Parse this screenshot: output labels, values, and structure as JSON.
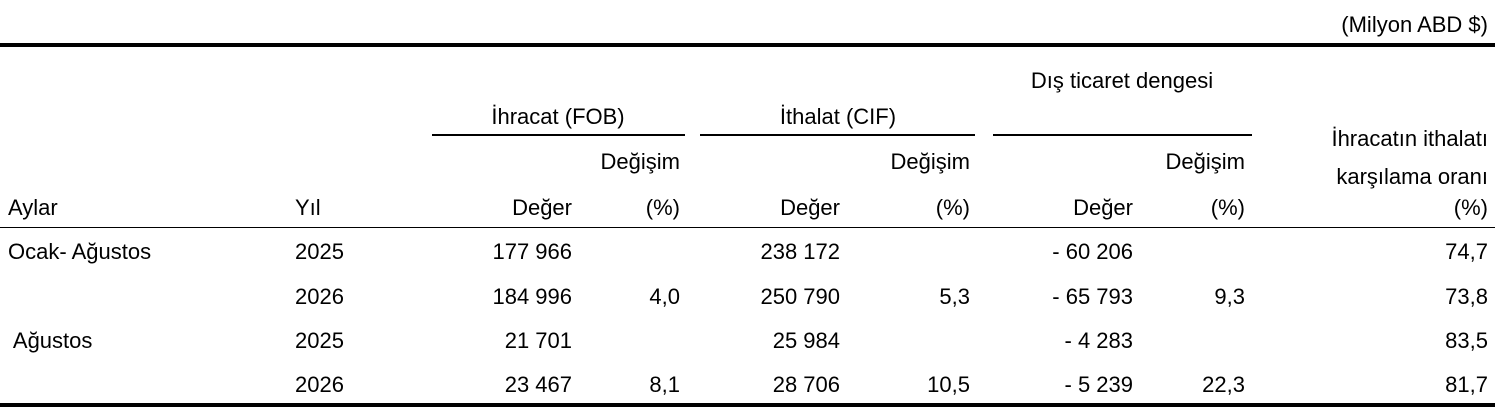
{
  "unit": "(Milyon ABD $)",
  "header": {
    "groups": [
      "İhracat (FOB)",
      "İthalat (CIF)",
      "Dış ticaret dengesi"
    ],
    "change": [
      "Değişim",
      "Değişim",
      "Değişim"
    ],
    "ratio": "İhracatın ithalatı karşılama oranı",
    "columns": [
      "Aylar",
      "Yıl",
      "Değer",
      "(%)",
      "Değer",
      "(%)",
      "Değer",
      "(%)",
      "(%)"
    ]
  },
  "table": {
    "rows": [
      [
        "Ocak- Ağustos",
        "2025",
        "177 966",
        null,
        "238 172",
        null,
        "- 60 206",
        null,
        "74,7"
      ],
      [
        null,
        "2026",
        "184 996",
        "4,0",
        "250 790",
        "5,3",
        "- 65 793",
        "9,3",
        "73,8"
      ],
      [
        " Ağustos",
        "2025",
        "21 701",
        null,
        "25 984",
        null,
        "- 4 283",
        null,
        "83,5"
      ],
      [
        null,
        "2026",
        "23 467",
        "8,1",
        "28 706",
        "10,5",
        "- 5 239",
        "22,3",
        "81,7"
      ]
    ]
  }
}
